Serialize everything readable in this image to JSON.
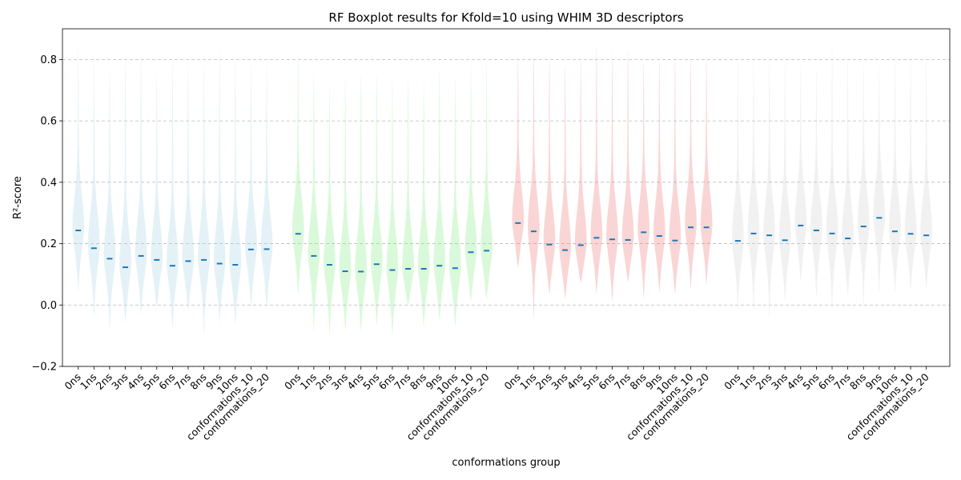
{
  "chart_data": {
    "type": "violin",
    "title": "RF Boxplot results for Kfold=10 using WHIM 3D descriptors",
    "xlabel": "conformations group",
    "ylabel": "R²-score",
    "ylim": [
      -0.2,
      0.9
    ],
    "yticks": [
      -0.2,
      0.0,
      0.2,
      0.4,
      0.6,
      0.8
    ],
    "yticklabels": [
      "−0.2",
      "0.0",
      "0.2",
      "0.4",
      "0.6",
      "0.8"
    ],
    "grid": "y-dashed",
    "legend": "none",
    "group_colors": [
      "#add8e6",
      "#90ee90",
      "#f08080",
      "#d3d3d3"
    ],
    "median_color": "#1f77b4",
    "categories": [
      "0ns",
      "1ns",
      "2ns",
      "3ns",
      "4ns",
      "5ns",
      "6ns",
      "7ns",
      "8ns",
      "9ns",
      "10ns",
      "conformations_10",
      "conformations_20"
    ],
    "groups": [
      {
        "color": "#add8e6",
        "min": [
          0.04,
          -0.04,
          -0.085,
          -0.06,
          -0.035,
          -0.015,
          -0.08,
          -0.02,
          -0.1,
          -0.06,
          -0.065,
          -0.01,
          -0.015
        ],
        "max": [
          0.845,
          0.815,
          0.775,
          0.815,
          0.835,
          0.755,
          0.805,
          0.8,
          0.79,
          0.83,
          0.815,
          0.795,
          0.79
        ],
        "median": [
          0.243,
          0.185,
          0.151,
          0.123,
          0.16,
          0.147,
          0.128,
          0.143,
          0.147,
          0.135,
          0.131,
          0.181,
          0.182
        ]
      },
      {
        "color": "#90ee90",
        "min": [
          0.03,
          -0.09,
          -0.1,
          -0.085,
          -0.09,
          -0.07,
          -0.105,
          -0.005,
          -0.075,
          -0.05,
          -0.075,
          0.01,
          0.015
        ],
        "max": [
          0.825,
          0.76,
          0.715,
          0.745,
          0.755,
          0.76,
          0.74,
          0.75,
          0.735,
          0.775,
          0.745,
          0.79,
          0.795
        ],
        "median": [
          0.232,
          0.16,
          0.131,
          0.11,
          0.109,
          0.133,
          0.114,
          0.118,
          0.118,
          0.128,
          0.12,
          0.172,
          0.177
        ]
      },
      {
        "color": "#f08080",
        "min": [
          0.12,
          -0.05,
          0.035,
          0.02,
          0.07,
          0.035,
          0.01,
          0.075,
          0.015,
          0.04,
          0.035,
          0.05,
          0.065
        ],
        "max": [
          0.82,
          0.82,
          0.805,
          0.785,
          0.805,
          0.85,
          0.825,
          0.835,
          0.795,
          0.805,
          0.805,
          0.81,
          0.81
        ],
        "median": [
          0.267,
          0.24,
          0.197,
          0.179,
          0.195,
          0.219,
          0.214,
          0.212,
          0.237,
          0.225,
          0.21,
          0.253,
          0.253
        ]
      },
      {
        "color": "#d3d3d3",
        "min": [
          -0.02,
          -0.02,
          -0.05,
          0.01,
          0.075,
          0.02,
          -0.025,
          0.025,
          -0.02,
          0.03,
          0.035,
          0.045,
          0.05
        ],
        "max": [
          0.81,
          0.815,
          0.82,
          0.82,
          0.78,
          0.77,
          0.855,
          0.825,
          0.8,
          0.785,
          0.82,
          0.82,
          0.82
        ],
        "median": [
          0.209,
          0.233,
          0.227,
          0.211,
          0.259,
          0.243,
          0.233,
          0.217,
          0.256,
          0.284,
          0.24,
          0.232,
          0.227
        ]
      }
    ]
  }
}
